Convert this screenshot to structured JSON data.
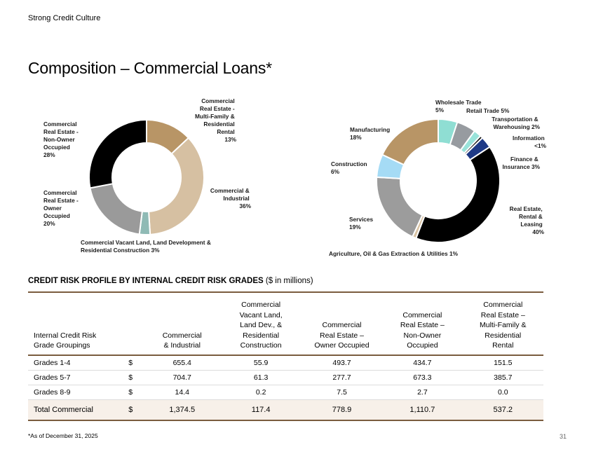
{
  "header": {
    "eyebrow": "Strong Credit Culture",
    "title": "Composition – Commercial Loans*"
  },
  "chart_data": [
    {
      "type": "donut",
      "title": "",
      "slices": [
        {
          "label": "Commercial Real Estate - Multi-Family & Residential Rental",
          "value": 13,
          "display": "13%",
          "color": "#b89566"
        },
        {
          "label": "Commercial & Industrial",
          "value": 36,
          "display": "36%",
          "color": "#d6c0a2"
        },
        {
          "label": "Commercial Vacant Land, Land Development & Residential Construction",
          "value": 3,
          "display": "3%",
          "color": "#8fbab5"
        },
        {
          "label": "Commercial Real Estate - Owner Occupied",
          "value": 20,
          "display": "20%",
          "color": "#9a9a9a"
        },
        {
          "label": "Commercial Real Estate - Non-Owner Occupied",
          "value": 28,
          "display": "28%",
          "color": "#000000"
        }
      ]
    },
    {
      "type": "donut",
      "title": "",
      "slices": [
        {
          "label": "Wholesale Trade",
          "value": 5,
          "display": "5%",
          "color": "#8fded3"
        },
        {
          "label": "Retail Trade",
          "value": 5,
          "display": "5%",
          "color": "#979ba0"
        },
        {
          "label": "Transportation & Warehousing",
          "value": 2,
          "display": "2%",
          "color": "#99e3da"
        },
        {
          "label": "Information",
          "value": 0.7,
          "display": "<1%",
          "color": "#0f0f0f"
        },
        {
          "label": "Finance & Insurance",
          "value": 3,
          "display": "3%",
          "color": "#1f3a86"
        },
        {
          "label": "Real Estate, Rental & Leasing",
          "value": 40,
          "display": "40%",
          "color": "#000000"
        },
        {
          "label": "Agriculture, Oil & Gas Extraction & Utilities",
          "value": 1,
          "display": "1%",
          "color": "#d9c3a3"
        },
        {
          "label": "Services",
          "value": 19,
          "display": "19%",
          "color": "#9c9c9c"
        },
        {
          "label": "Construction",
          "value": 6,
          "display": "6%",
          "color": "#a5dbf5"
        },
        {
          "label": "Manufacturing",
          "value": 18,
          "display": "18%",
          "color": "#b89566"
        }
      ]
    },
    {
      "type": "table",
      "title": "CREDIT RISK PROFILE BY INTERNAL CREDIT RISK GRADES",
      "unit": "($ in millions)",
      "columns": [
        "Commercial & Industrial",
        "Commercial Vacant Land, Land Dev., & Residential Construction",
        "Commercial Real Estate – Owner Occupied",
        "Commercial Real Estate – Non-Owner Occupied",
        "Commercial Real Estate – Multi-Family & Residential Rental"
      ],
      "rows": [
        {
          "label": "Grades 1-4",
          "values": [
            "655.4",
            "55.9",
            "493.7",
            "434.7",
            "151.5"
          ]
        },
        {
          "label": "Grades 5-7",
          "values": [
            "704.7",
            "61.3",
            "277.7",
            "673.3",
            "385.7"
          ]
        },
        {
          "label": "Grades 8-9",
          "values": [
            "14.4",
            "0.2",
            "7.5",
            "2.7",
            "0.0"
          ]
        }
      ],
      "total": {
        "label": "Total Commercial",
        "values": [
          "1,374.5",
          "117.4",
          "778.9",
          "1,110.7",
          "537.2"
        ]
      }
    }
  ],
  "donut_labels": {
    "left": {
      "multifamily": [
        "Commercial",
        "Real Estate -",
        "Multi-Family &",
        "Residential",
        "Rental",
        "13%"
      ],
      "industrial": [
        "Commercial &",
        "Industrial",
        "36%"
      ],
      "vacant": [
        "Commercial Vacant Land, Land Development &",
        "Residential Construction 3%"
      ],
      "owner": [
        "Commercial",
        "Real Estate -",
        "Owner",
        "Occupied",
        "20%"
      ],
      "nonowner": [
        "Commercial",
        "Real Estate -",
        "Non-Owner",
        "Occupied",
        "28%"
      ]
    },
    "right": {
      "wholesale": [
        "Wholesale Trade",
        "5%"
      ],
      "retail": [
        "Retail Trade 5%"
      ],
      "transport": [
        "Transportation &",
        "Warehousing 2%"
      ],
      "information": [
        "Information",
        "<1%"
      ],
      "finance": [
        "Finance &",
        "Insurance 3%"
      ],
      "realestate": [
        "Real Estate,",
        "Rental &",
        "Leasing",
        "40%"
      ],
      "agriculture": [
        "Agriculture, Oil & Gas Extraction & Utilities 1%"
      ],
      "services": [
        "Services",
        "19%"
      ],
      "construction": [
        "Construction",
        "6%"
      ],
      "manufacturing": [
        "Manufacturing",
        "18%"
      ]
    }
  },
  "table": {
    "first_header": [
      "Internal Credit Risk",
      "Grade Groupings"
    ],
    "headers": [
      [
        "Commercial",
        "& Industrial"
      ],
      [
        "Commercial",
        "Vacant Land,",
        "Land Dev., &",
        "Residential",
        "Construction"
      ],
      [
        "Commercial",
        "Real Estate –",
        "Owner Occupied"
      ],
      [
        "Commercial",
        "Real Estate –",
        "Non-Owner",
        "Occupied"
      ],
      [
        "Commercial",
        "Real Estate –",
        "Multi-Family &",
        "Residential",
        "Rental"
      ]
    ],
    "currency_symbol": "$"
  },
  "footer": {
    "footnote": "*As of December 31, 2025",
    "page_number": "31"
  }
}
